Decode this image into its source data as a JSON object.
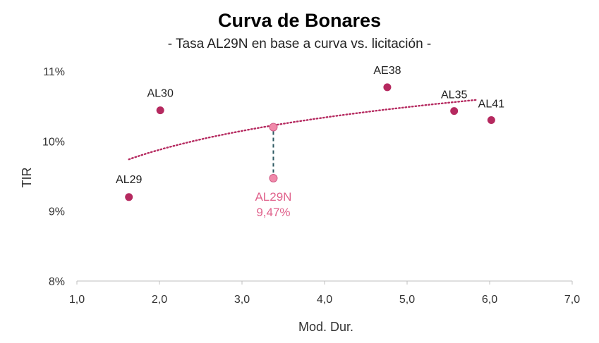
{
  "title": "Curva de Bonares",
  "subtitle": "- Tasa AL29N en base a curva vs. licitación -",
  "chart_data": {
    "type": "scatter",
    "xlabel": "Mod. Dur.",
    "ylabel": "TIR",
    "xlim": [
      1.0,
      7.0
    ],
    "ylim": [
      8.0,
      11.0
    ],
    "xticks": [
      "1,0",
      "2,0",
      "3,0",
      "4,0",
      "5,0",
      "6,0",
      "7,0"
    ],
    "yticks": [
      "8%",
      "9%",
      "10%",
      "11%"
    ],
    "grid": false,
    "colors": {
      "bonds": "#b5295f",
      "highlight": "#f08aaa",
      "trend": "#b5295f",
      "connector": "#2e5a63"
    },
    "series": [
      {
        "name": "Bonares",
        "points": [
          {
            "label": "AL29",
            "x": 1.63,
            "y": 9.2
          },
          {
            "label": "AL30",
            "x": 2.01,
            "y": 10.44
          },
          {
            "label": "AE38",
            "x": 4.76,
            "y": 10.77
          },
          {
            "label": "AL35",
            "x": 5.57,
            "y": 10.43
          },
          {
            "label": "AL41",
            "x": 6.02,
            "y": 10.3
          }
        ]
      },
      {
        "points": [
          {
            "x": 3.38,
            "y": 10.2
          },
          {
            "label": "AL29N",
            "value_label": "9,47%",
            "x": 3.38,
            "y": 9.47
          }
        ]
      }
    ],
    "trendline": {
      "type": "log",
      "x_from": 1.63,
      "x_to": 5.85,
      "y_from": 9.74,
      "y_to": 10.59
    }
  }
}
